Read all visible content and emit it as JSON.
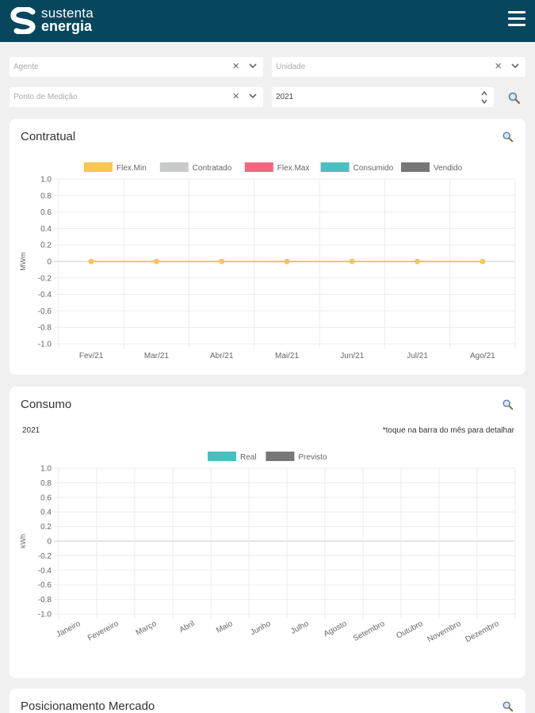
{
  "header": {
    "brand_line1": "sustenta",
    "brand_line2": "energia"
  },
  "filters": {
    "agente_placeholder": "Agente",
    "unidade_placeholder": "Unidade",
    "ponto_placeholder": "Ponto de Medição",
    "year_value": "2021"
  },
  "contratual": {
    "title": "Contratual",
    "chart_data": {
      "type": "line",
      "ylabel": "MWm",
      "ylim": [
        -1.0,
        1.0
      ],
      "y_ticks": [
        "1.0",
        "0.8",
        "0.6",
        "0.4",
        "0.2",
        "0",
        "-0.2",
        "-0.4",
        "-0.6",
        "-0.8",
        "-1.0"
      ],
      "categories": [
        "Fev/21",
        "Mar/21",
        "Abr/21",
        "Mai/21",
        "Jun/21",
        "Jul/21",
        "Ago/21"
      ],
      "legend": [
        {
          "name": "Flex.Min",
          "color": "#f9c74f"
        },
        {
          "name": "Contratado",
          "color": "#c8cacc"
        },
        {
          "name": "Flex.Max",
          "color": "#f4667f"
        },
        {
          "name": "Consumido",
          "color": "#4bbfbf"
        },
        {
          "name": "Vendido",
          "color": "#777777"
        }
      ],
      "series": [
        {
          "name": "Flex.Min",
          "values": [
            0,
            0,
            0,
            0,
            0,
            0,
            0
          ]
        }
      ]
    }
  },
  "consumo": {
    "title": "Consumo",
    "year": "2021",
    "hint": "*toque na barra do mês para detalhar",
    "chart_data": {
      "type": "bar",
      "ylabel": "kWh",
      "ylim": [
        -1.0,
        1.0
      ],
      "y_ticks": [
        "1.0",
        "0.8",
        "0.6",
        "0.4",
        "0.2",
        "0",
        "-0.2",
        "-0.4",
        "-0.6",
        "-0.8",
        "-1.0"
      ],
      "categories": [
        "Janeiro",
        "Fevereiro",
        "Março",
        "Abril",
        "Maio",
        "Junho",
        "Julho",
        "Agosto",
        "Setembro",
        "Outubro",
        "Novembro",
        "Dezembro"
      ],
      "legend": [
        {
          "name": "Real",
          "color": "#4bbfbf"
        },
        {
          "name": "Previsto",
          "color": "#777777"
        }
      ],
      "series": []
    }
  },
  "posicionamento": {
    "title": "Posicionamento Mercado"
  }
}
